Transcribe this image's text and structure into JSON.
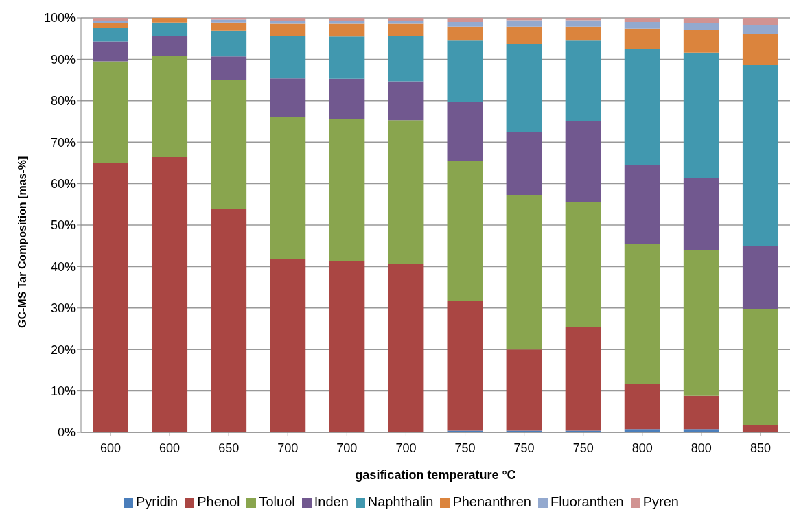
{
  "chart_data": {
    "type": "bar",
    "stacked": true,
    "xlabel": "gasification temperature °C",
    "ylabel": "GC-MS Tar Composition [mas-%]",
    "categories": [
      "600",
      "600",
      "650",
      "700",
      "700",
      "700",
      "750",
      "750",
      "750",
      "800",
      "800",
      "850"
    ],
    "series": [
      {
        "name": "Pyridin",
        "color": "#4a7ebb",
        "values": [
          0,
          0,
          0,
          0,
          0,
          0,
          0.4,
          0.4,
          0.4,
          0.8,
          0.8,
          0
        ]
      },
      {
        "name": "Phenol",
        "color": "#aa4643",
        "values": [
          65,
          66.4,
          53.8,
          41.8,
          41.3,
          40.7,
          31.3,
          19.6,
          25.1,
          10.9,
          8,
          1.8
        ]
      },
      {
        "name": "Toluol",
        "color": "#89a54e",
        "values": [
          24.5,
          24.4,
          31.2,
          34.3,
          34.2,
          34.6,
          33.8,
          37.3,
          30.1,
          33.8,
          35.2,
          28
        ]
      },
      {
        "name": "Inden",
        "color": "#71588f",
        "values": [
          4.8,
          4.9,
          5.7,
          9.3,
          9.8,
          9.4,
          14.2,
          15.1,
          19.5,
          18.9,
          17.3,
          15.2
        ]
      },
      {
        "name": "Naphthalin",
        "color": "#4198af",
        "values": [
          3.2,
          3.2,
          6.2,
          10.3,
          10.2,
          11,
          14.8,
          21.3,
          19.4,
          28,
          30.3,
          43.6
        ]
      },
      {
        "name": "Phenanthren",
        "color": "#db843d",
        "values": [
          1.2,
          1.1,
          2,
          2.9,
          3.1,
          2.9,
          3.4,
          4.2,
          3.4,
          5,
          5.5,
          7.5
        ]
      },
      {
        "name": "Fluoranthen",
        "color": "#93a9cf",
        "values": [
          0.6,
          0,
          0.7,
          0.7,
          0.6,
          0.7,
          1.1,
          1.5,
          1.5,
          1.6,
          1.7,
          2.2
        ]
      },
      {
        "name": "Pyren",
        "color": "#d19392",
        "values": [
          0.7,
          0,
          0.4,
          0.7,
          0.8,
          0.7,
          1,
          0.6,
          0.6,
          1,
          1.2,
          1.7
        ]
      }
    ],
    "ylim": [
      0,
      100
    ],
    "yticks": [
      {
        "value": 0,
        "label": "0%"
      },
      {
        "value": 10,
        "label": "10%"
      },
      {
        "value": 20,
        "label": "20%"
      },
      {
        "value": 30,
        "label": "30%"
      },
      {
        "value": 40,
        "label": "40%"
      },
      {
        "value": 50,
        "label": "50%"
      },
      {
        "value": 60,
        "label": "60%"
      },
      {
        "value": 70,
        "label": "70%"
      },
      {
        "value": 80,
        "label": "80%"
      },
      {
        "value": 90,
        "label": "90%"
      },
      {
        "value": 100,
        "label": "100%"
      }
    ],
    "grid": "y",
    "legend": "bottom"
  }
}
